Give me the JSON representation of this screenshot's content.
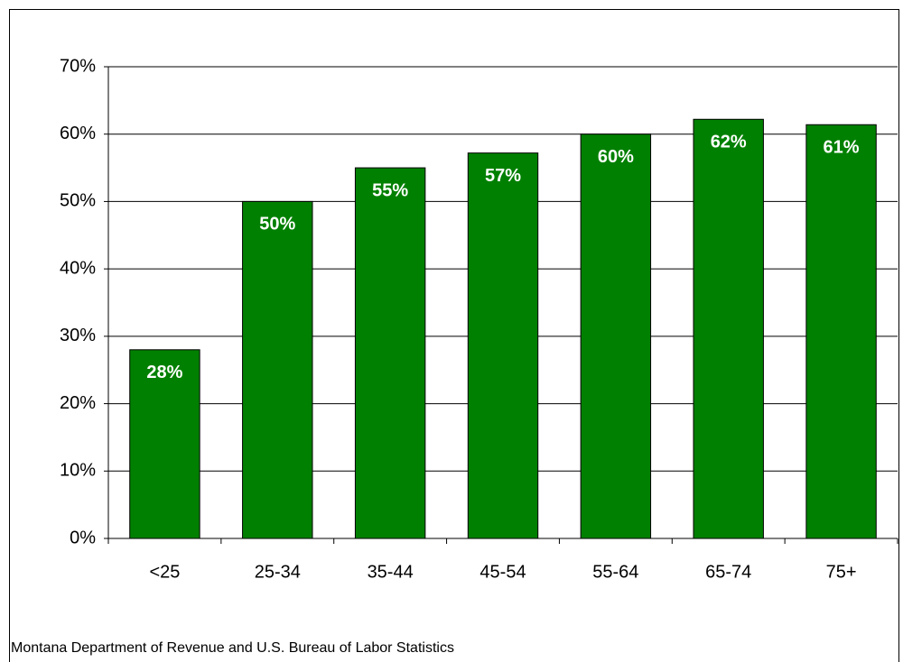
{
  "chart_data": {
    "type": "bar",
    "categories": [
      "<25",
      "25-34",
      "35-44",
      "45-54",
      "55-64",
      "65-74",
      "75+"
    ],
    "values": [
      28,
      50,
      55,
      57.2,
      60,
      62.2,
      61.4
    ],
    "value_labels": [
      "28%",
      "50%",
      "55%",
      "57%",
      "60%",
      "62%",
      "61%"
    ],
    "color": "#008000",
    "ylim": [
      0,
      70
    ],
    "yticks": [
      {
        "value": 0,
        "label": "0%"
      },
      {
        "value": 10,
        "label": "10%"
      },
      {
        "value": 20,
        "label": "20%"
      },
      {
        "value": 30,
        "label": "30%"
      },
      {
        "value": 40,
        "label": "40%"
      },
      {
        "value": 50,
        "label": "50%"
      },
      {
        "value": 60,
        "label": "60%"
      },
      {
        "value": 70,
        "label": "70%"
      }
    ],
    "grid": true,
    "source": "Montana Department of Revenue and U.S. Bureau of Labor Statistics"
  }
}
